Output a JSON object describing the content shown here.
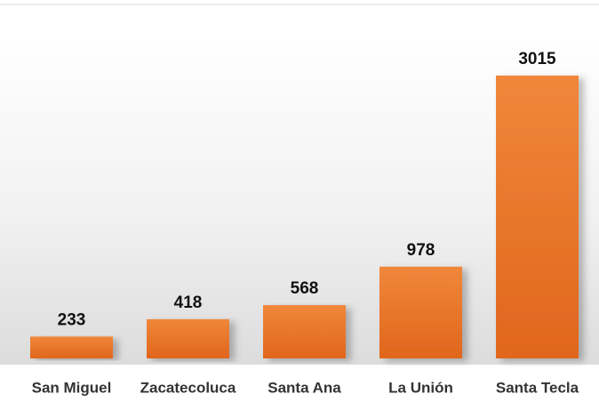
{
  "chart_data": {
    "type": "bar",
    "categories": [
      "San Miguel",
      "Zacatecoluca",
      "Santa Ana",
      "La Unión",
      "Santa Tecla"
    ],
    "values": [
      233,
      418,
      568,
      978,
      3015
    ],
    "color": "#ed7d31"
  }
}
